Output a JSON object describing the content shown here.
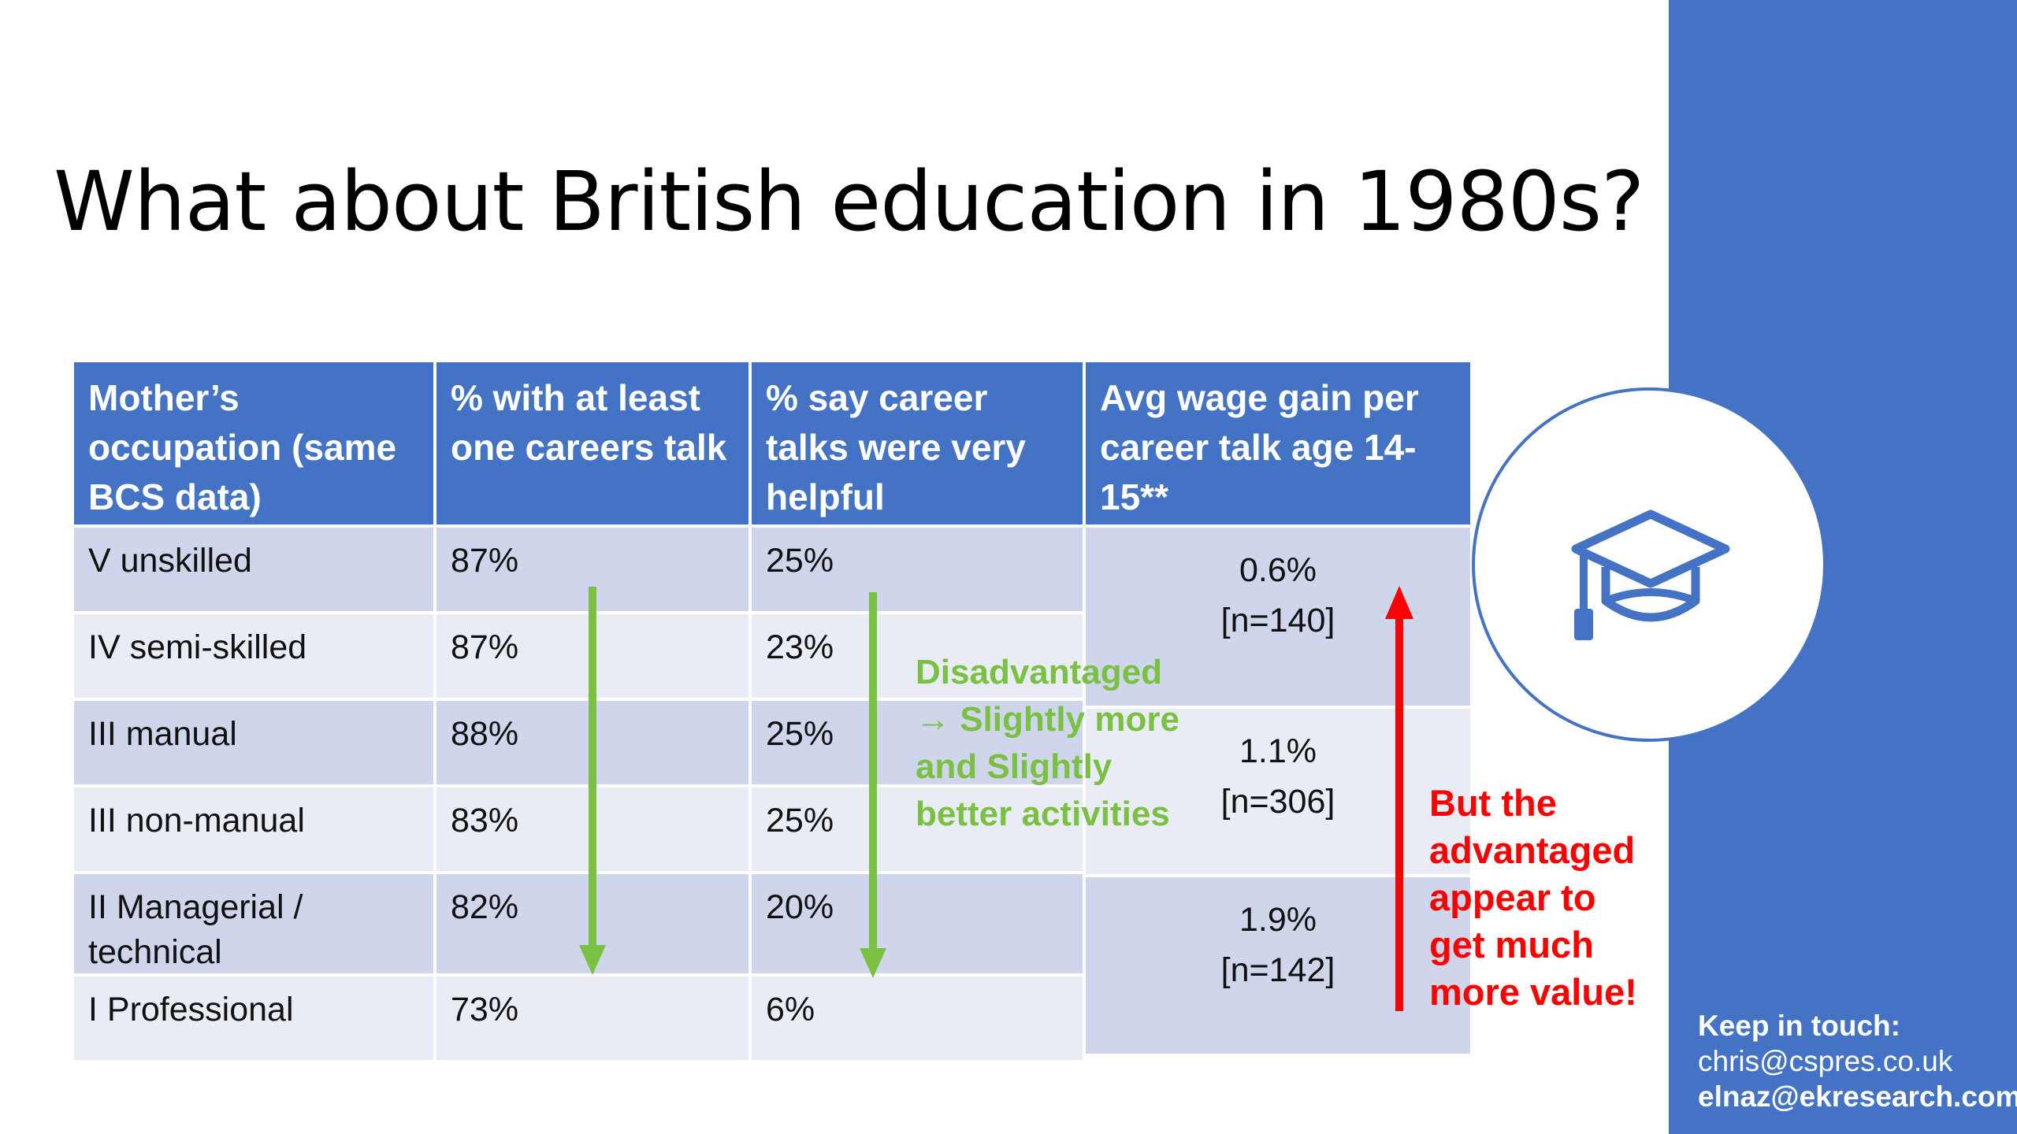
{
  "slide": {
    "title": "What about British education in 1980s?"
  },
  "table": {
    "headers": [
      "Mother’s occupation (same BCS data)",
      "% with at least one careers talk",
      "% say career talks were very helpful",
      "Avg wage gain per career talk age 14-15**"
    ],
    "rows": [
      {
        "occupation": "V unskilled",
        "careers_talk": "87%",
        "very_helpful": "25%"
      },
      {
        "occupation": "IV semi-skilled",
        "careers_talk": "87%",
        "very_helpful": "23%"
      },
      {
        "occupation": "III manual",
        "careers_talk": "88%",
        "very_helpful": "25%"
      },
      {
        "occupation": "III non-manual",
        "careers_talk": "83%",
        "very_helpful": "25%"
      },
      {
        "occupation": "II Managerial / technical",
        "careers_talk": "82%",
        "very_helpful": "20%"
      },
      {
        "occupation": "I Professional",
        "careers_talk": "73%",
        "very_helpful": "6%"
      }
    ],
    "wage_gains": [
      {
        "value": "0.6%",
        "n": "[n=140]"
      },
      {
        "value": "1.1%",
        "n": "[n=306]"
      },
      {
        "value": "1.9%",
        "n": "[n=142]"
      }
    ]
  },
  "annotations": {
    "green_note": [
      "Disadvantaged",
      "→ Slightly more",
      "and Slightly",
      "better activities"
    ],
    "red_note": [
      "But the",
      "advantaged",
      "appear to",
      "get much",
      "more value!"
    ]
  },
  "contact": {
    "heading": "Keep in touch:",
    "email_1": "chris@cspres.co.uk",
    "email_2": "elnaz@ekresearch.com"
  },
  "icons": {
    "badge": "graduation-cap-icon"
  },
  "colors": {
    "accent": "#4472c4",
    "header_bg": "#4472c4",
    "row_dark": "#cfd5ea",
    "row_light": "#e9ebf5",
    "green": "#7ac143",
    "red": "#ff0000"
  }
}
